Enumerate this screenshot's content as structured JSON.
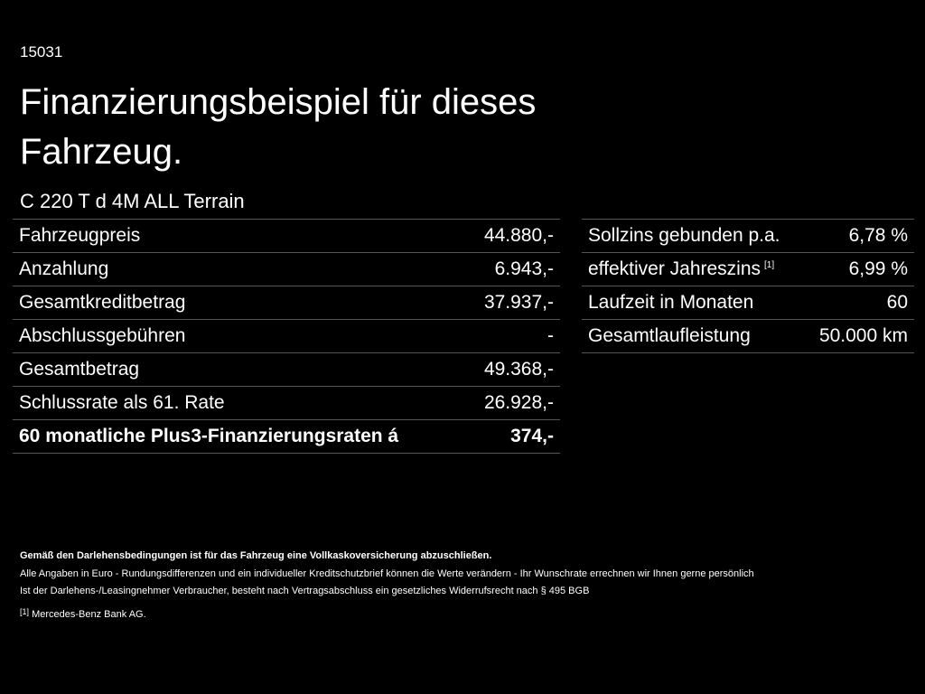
{
  "header": {
    "id": "15031",
    "title": "Finanzierungsbeispiel für dieses Fahrzeug.",
    "model": "C 220 T d 4M ALL Terrain"
  },
  "left_table": {
    "rows": [
      {
        "label": "Fahrzeugpreis",
        "value": "44.880,-"
      },
      {
        "label": "Anzahlung",
        "value": "6.943,-"
      },
      {
        "label": "Gesamtkreditbetrag",
        "value": "37.937,-"
      },
      {
        "label": "Abschlussgebühren",
        "value": "-"
      },
      {
        "label": "Gesamtbetrag",
        "value": "49.368,-"
      },
      {
        "label": "Schlussrate als 61. Rate",
        "value": "26.928,-"
      },
      {
        "label": "60 monatliche Plus3-Finanzierungsraten á",
        "value": "374,-"
      }
    ]
  },
  "right_table": {
    "rows": [
      {
        "label": "Sollzins gebunden p.a.",
        "value": "6,78 %"
      },
      {
        "label": "effektiver Jahreszins",
        "note": "[1]",
        "value": "6,99 %"
      },
      {
        "label": "Laufzeit in Monaten",
        "value": "60"
      },
      {
        "label": "Gesamtlaufleistung",
        "value": "50.000 km"
      }
    ]
  },
  "footer": {
    "bold": "Gemäß den Darlehensbedingungen ist für das Fahrzeug eine Vollkaskoversicherung abzuschließen.",
    "lines": [
      "Alle Angaben in Euro - Rundungsdifferenzen und ein individueller Kreditschutzbrief können die Werte verändern - Ihr Wunschrate errechnen wir Ihnen gerne persönlich",
      "Ist der Darlehens-/Leasingnehmer Verbraucher, besteht nach Vertragsabschluss ein gesetzliches Widerrufsrecht nach § 495 BGB"
    ],
    "note_marker": "[1]",
    "note_text": "Mercedes-Benz Bank AG."
  }
}
